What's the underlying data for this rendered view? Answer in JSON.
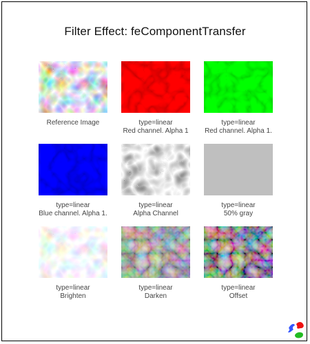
{
  "title": "Filter Effect: feComponentTransfer",
  "colors": {
    "frame_border": "#000000",
    "title_text": "#111111",
    "caption_text": "#444444",
    "red_channel": "#cc0000",
    "green_channel": "#00cc00",
    "blue_channel": "#0000cc",
    "gray_50": "#bfbfbf"
  },
  "tiles": [
    {
      "line1": "Reference Image",
      "line2": "",
      "icon": "reference-image"
    },
    {
      "line1": "type=linear",
      "line2": "Red channel. Alpha 1",
      "icon": "red-channel-image"
    },
    {
      "line1": "type=linear",
      "line2": "Red channel. Alpha 1.",
      "icon": "green-channel-image"
    },
    {
      "line1": "type=linear",
      "line2": "Blue channel. Alpha 1.",
      "icon": "blue-channel-image"
    },
    {
      "line1": "type=linear",
      "line2": "Alpha Channel",
      "icon": "alpha-channel-image"
    },
    {
      "line1": "type=linear",
      "line2": "50% gray",
      "icon": "gray-image"
    },
    {
      "line1": "type=linear",
      "line2": "Brighten",
      "icon": "brighten-image"
    },
    {
      "line1": "type=linear",
      "line2": "Darken",
      "icon": "darken-image"
    },
    {
      "line1": "type=linear",
      "line2": "Offset",
      "icon": "offset-image"
    }
  ],
  "logo_icon": "svg-logo-icon"
}
